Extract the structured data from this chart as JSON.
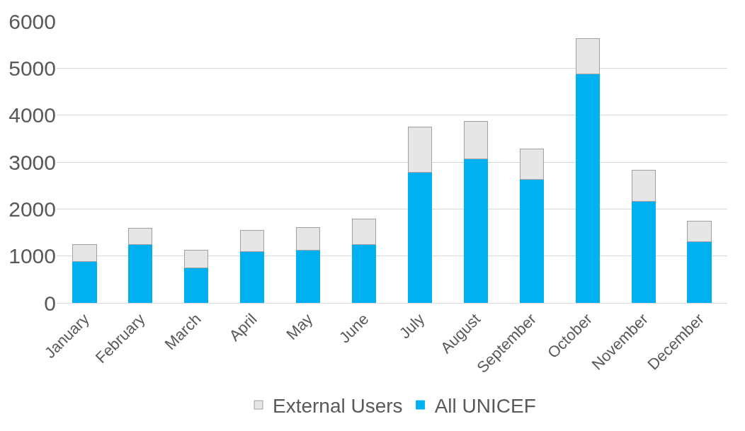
{
  "chart_data": {
    "type": "bar",
    "stacked": true,
    "categories": [
      "January",
      "February",
      "March",
      "April",
      "May",
      "June",
      "July",
      "August",
      "September",
      "October",
      "November",
      "December"
    ],
    "series": [
      {
        "name": "All UNICEF",
        "color": "#00b0f0",
        "values": [
          880,
          1240,
          740,
          1090,
          1130,
          1240,
          2780,
          3070,
          2630,
          4870,
          2170,
          1300
        ]
      },
      {
        "name": "External Users",
        "color": "#e7e6e6",
        "values": [
          360,
          350,
          390,
          460,
          480,
          540,
          960,
          800,
          650,
          760,
          660,
          440
        ]
      }
    ],
    "ylim": [
      0,
      6000
    ],
    "yticks": [
      0,
      1000,
      2000,
      3000,
      4000,
      5000,
      6000
    ],
    "grid": "y",
    "legend": "bottom"
  }
}
